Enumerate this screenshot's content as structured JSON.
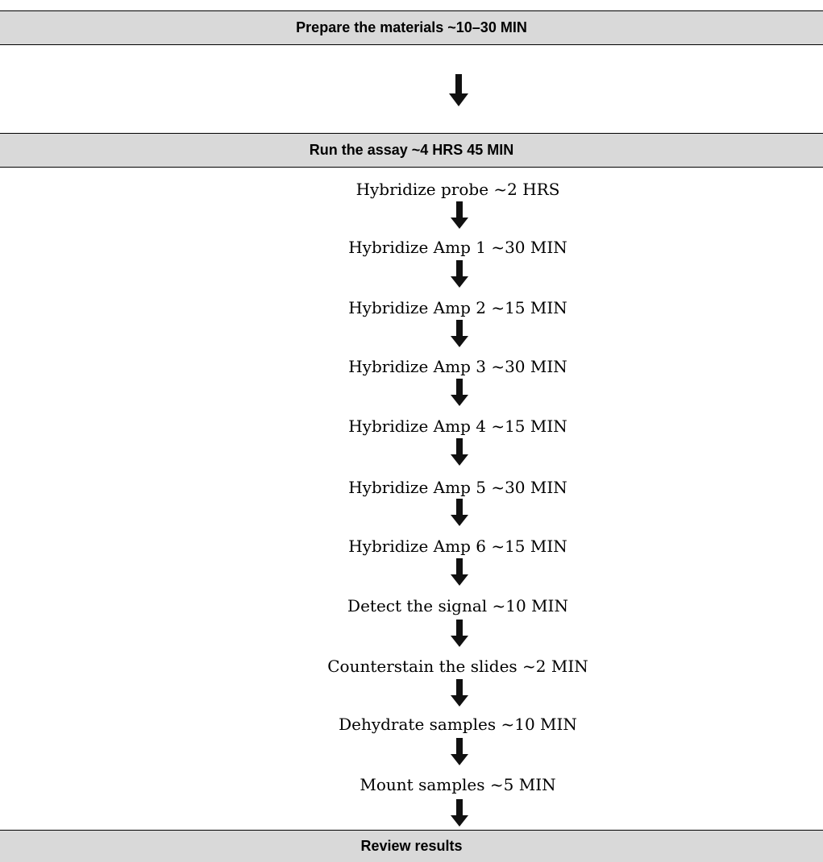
{
  "sections": {
    "prepare": "Prepare the materials ~10–30 MIN",
    "run": "Run the assay ~4 HRS 45 MIN",
    "review": "Review results"
  },
  "steps": [
    "Hybridize probe ~2 HRS",
    "Hybridize Amp 1  ~30 MIN",
    "Hybridize Amp 2 ~15 MIN",
    "Hybridize Amp 3 ~30 MIN",
    "Hybridize Amp 4 ~15 MIN",
    "Hybridize Amp 5 ~30 MIN",
    "Hybridize Amp 6 ~15 MIN",
    "Detect the signal ~10 MIN",
    "Counterstain the slides ~2 MIN",
    "Dehydrate samples ~10 MIN",
    "Mount samples ~5 MIN"
  ],
  "colors": {
    "band_fill": "#d9d9d9",
    "arrow": "#111111"
  }
}
